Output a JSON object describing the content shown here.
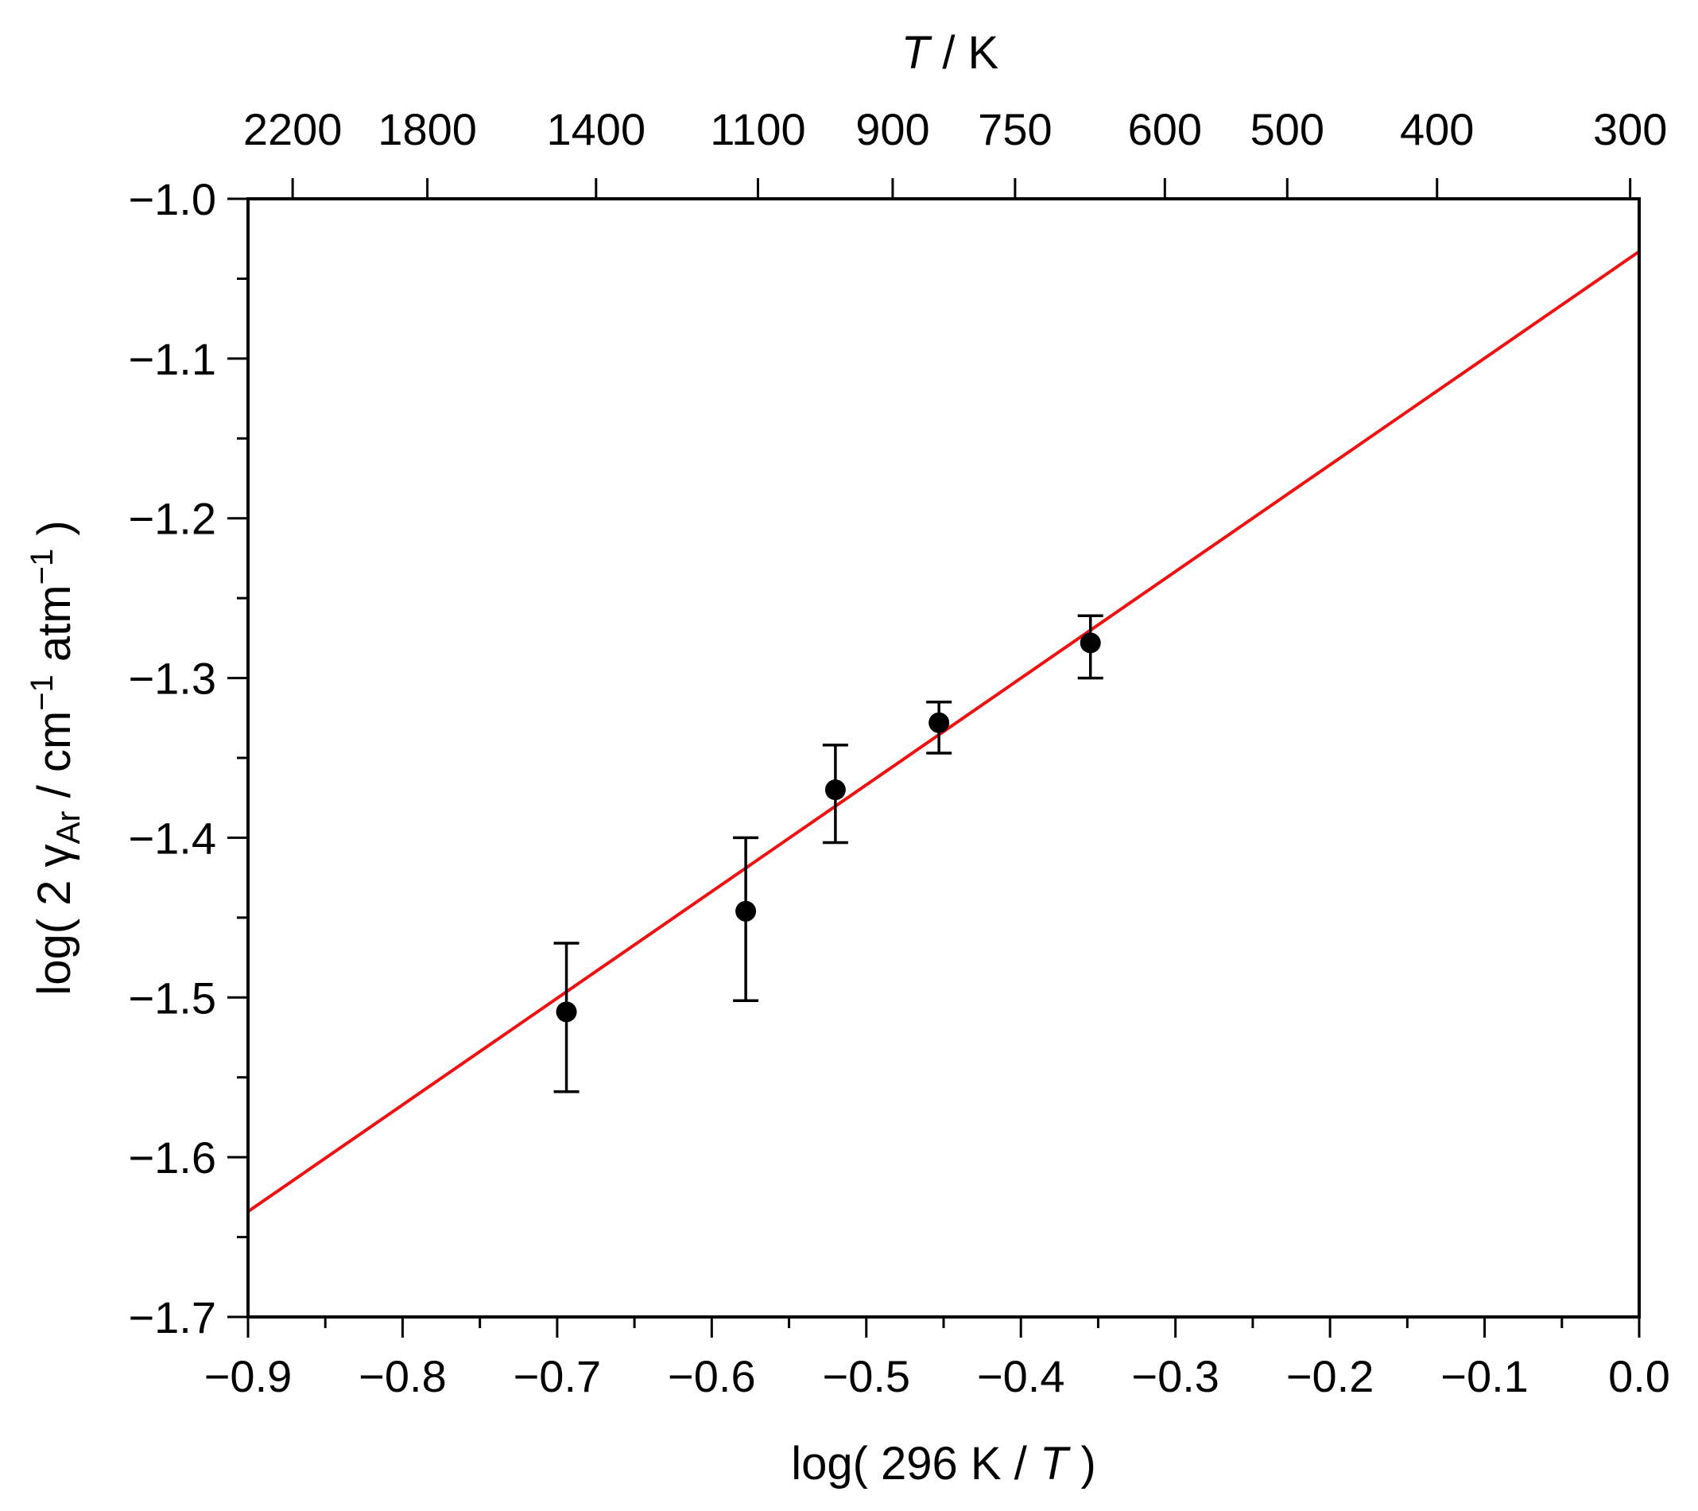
{
  "chart_data": {
    "type": "scatter",
    "xlabel": {
      "prefix": "log( 296 K / ",
      "italic": "T",
      "suffix": " )"
    },
    "ylabel": {
      "prefix": "log( 2 γ",
      "sub": "Ar",
      "mid1": " / cm",
      "sup1": "−1",
      "mid2": " atm",
      "sup2": "−1",
      "suffix": " )"
    },
    "top_xlabel": {
      "italic": "T",
      "suffix": " / K"
    },
    "xlim": [
      -0.9,
      0.0
    ],
    "ylim": [
      -1.7,
      -1.0
    ],
    "x_ticks": [
      {
        "value": -0.9,
        "label": "−0.9"
      },
      {
        "value": -0.8,
        "label": "−0.8"
      },
      {
        "value": -0.7,
        "label": "−0.7"
      },
      {
        "value": -0.6,
        "label": "−0.6"
      },
      {
        "value": -0.5,
        "label": "−0.5"
      },
      {
        "value": -0.4,
        "label": "−0.4"
      },
      {
        "value": -0.3,
        "label": "−0.3"
      },
      {
        "value": -0.2,
        "label": "−0.2"
      },
      {
        "value": -0.1,
        "label": "−0.1"
      },
      {
        "value": 0.0,
        "label": "0.0"
      }
    ],
    "x_minor_step": 0.05,
    "y_ticks": [
      {
        "value": -1.0,
        "label": "−1.0"
      },
      {
        "value": -1.1,
        "label": "−1.1"
      },
      {
        "value": -1.2,
        "label": "−1.2"
      },
      {
        "value": -1.3,
        "label": "−1.3"
      },
      {
        "value": -1.4,
        "label": "−1.4"
      },
      {
        "value": -1.5,
        "label": "−1.5"
      },
      {
        "value": -1.6,
        "label": "−1.6"
      },
      {
        "value": -1.7,
        "label": "−1.7"
      }
    ],
    "y_minor_step": 0.05,
    "top_ticks": [
      {
        "T": 2200,
        "label": "2200"
      },
      {
        "T": 1800,
        "label": "1800"
      },
      {
        "T": 1400,
        "label": "1400"
      },
      {
        "T": 1100,
        "label": "1100"
      },
      {
        "T": 900,
        "label": "900"
      },
      {
        "T": 750,
        "label": "750"
      },
      {
        "T": 600,
        "label": "600"
      },
      {
        "T": 500,
        "label": "500"
      },
      {
        "T": 400,
        "label": "400"
      },
      {
        "T": 300,
        "label": "300"
      }
    ],
    "top_ref_T": 296,
    "points": [
      {
        "x": -0.694,
        "y": -1.509,
        "yerr_low": -1.559,
        "yerr_high": -1.466
      },
      {
        "x": -0.578,
        "y": -1.446,
        "yerr_low": -1.502,
        "yerr_high": -1.4
      },
      {
        "x": -0.52,
        "y": -1.37,
        "yerr_low": -1.403,
        "yerr_high": -1.342
      },
      {
        "x": -0.453,
        "y": -1.328,
        "yerr_low": -1.347,
        "yerr_high": -1.315
      },
      {
        "x": -0.355,
        "y": -1.278,
        "yerr_low": -1.3,
        "yerr_high": -1.261
      }
    ],
    "fit_line": {
      "x": [
        -0.9,
        0.0
      ],
      "y": [
        -1.634,
        -1.033
      ]
    },
    "colors": {
      "fit": "#ee1111",
      "points": "#000000",
      "axes": "#000000"
    },
    "grid": false
  }
}
